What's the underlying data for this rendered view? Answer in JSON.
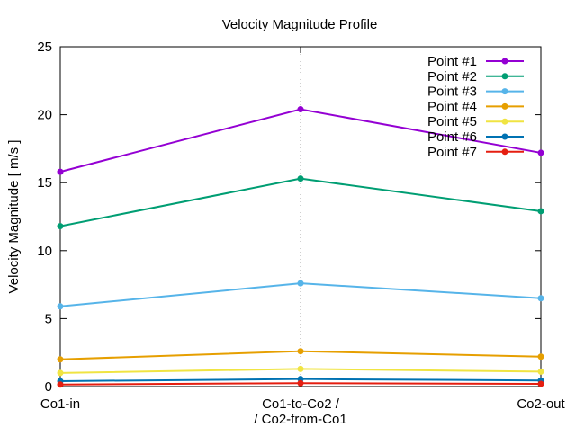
{
  "chart_data": {
    "type": "line",
    "title": "Velocity Magnitude Profile",
    "xlabel": "",
    "ylabel": "Velocity Magnitude [ m/s ]",
    "categories": [
      [
        "Co1-in"
      ],
      [
        "Co1-to-Co2 /",
        "/ Co2-from-Co1"
      ],
      [
        "Co2-out"
      ]
    ],
    "ylim": [
      0,
      25
    ],
    "yticks": [
      0,
      5,
      10,
      15,
      20,
      25
    ],
    "grid": "vertical dotted line at middle category",
    "legend_position": "top-right",
    "series": [
      {
        "name": "Point #1",
        "color": "#9400d3",
        "values": [
          15.8,
          20.4,
          17.2
        ]
      },
      {
        "name": "Point #2",
        "color": "#009e73",
        "values": [
          11.8,
          15.3,
          12.9
        ]
      },
      {
        "name": "Point #3",
        "color": "#56b4e9",
        "values": [
          5.9,
          7.6,
          6.5
        ]
      },
      {
        "name": "Point #4",
        "color": "#e69f00",
        "values": [
          2.0,
          2.6,
          2.2
        ]
      },
      {
        "name": "Point #5",
        "color": "#f0e442",
        "values": [
          1.0,
          1.3,
          1.1
        ]
      },
      {
        "name": "Point #6",
        "color": "#0072b2",
        "values": [
          0.4,
          0.55,
          0.45
        ]
      },
      {
        "name": "Point #7",
        "color": "#e51e10",
        "values": [
          0.15,
          0.25,
          0.2
        ]
      }
    ]
  }
}
